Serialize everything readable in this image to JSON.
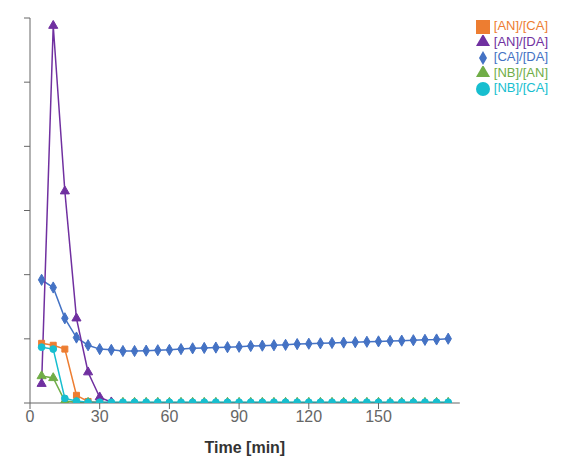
{
  "chart_data": {
    "type": "line",
    "title": "",
    "x_label": "Time [min]",
    "xlim": [
      0,
      185
    ],
    "xticks": [
      0,
      30,
      60,
      90,
      120,
      150
    ],
    "ylim": [
      0,
      10
    ],
    "yticks": [
      0,
      1.6666666666666667,
      3.3333333333333335,
      5,
      6.666666666666667,
      8.333333333333334,
      10
    ],
    "tick_labels": "x",
    "grid": false,
    "legend": "right",
    "series": [
      {
        "name": "[CA]/[DA]",
        "color": "#4472C4",
        "marker": "diamond",
        "x": [
          5,
          10,
          15,
          20,
          25,
          30,
          35,
          40,
          45,
          50,
          55,
          60,
          65,
          70,
          75,
          80,
          85,
          90,
          95,
          100,
          105,
          110,
          115,
          120,
          125,
          130,
          135,
          140,
          145,
          150,
          155,
          160,
          165,
          170,
          175,
          180
        ],
        "values": [
          3.2,
          3.0,
          2.2,
          1.7,
          1.5,
          1.4,
          1.38,
          1.35,
          1.35,
          1.36,
          1.37,
          1.38,
          1.4,
          1.42,
          1.43,
          1.44,
          1.45,
          1.46,
          1.48,
          1.49,
          1.5,
          1.51,
          1.53,
          1.54,
          1.55,
          1.56,
          1.57,
          1.58,
          1.59,
          1.6,
          1.61,
          1.62,
          1.63,
          1.64,
          1.65,
          1.67
        ]
      },
      {
        "name": "[AN]/[CA]",
        "color": "#ED7D31",
        "marker": "square",
        "x": [
          5,
          10,
          15,
          20,
          25,
          30
        ],
        "values": [
          1.55,
          1.5,
          1.4,
          0.2,
          0.04,
          0.01
        ]
      },
      {
        "name": "[NB]/[AN]",
        "color": "#70AD47",
        "marker": "triangle",
        "x": [
          5,
          10,
          15,
          20,
          25,
          30,
          35,
          40,
          45,
          50,
          55,
          60,
          65,
          70,
          75,
          80,
          85,
          90,
          95,
          100,
          105,
          110,
          115,
          120,
          125,
          130,
          135,
          140,
          145,
          150,
          155,
          160,
          165,
          170,
          175,
          180
        ],
        "values": [
          0.7,
          0.65,
          0.05,
          0.02,
          0.01,
          0.01,
          0.01,
          0.01,
          0.01,
          0.01,
          0.01,
          0.01,
          0.01,
          0.01,
          0.01,
          0.01,
          0.01,
          0.01,
          0.01,
          0.01,
          0.01,
          0.01,
          0.01,
          0.01,
          0.01,
          0.01,
          0.01,
          0.01,
          0.01,
          0.01,
          0.01,
          0.01,
          0.01,
          0.01,
          0.01,
          0.01
        ]
      },
      {
        "name": "[AN]/[DA]",
        "color": "#7030A0",
        "marker": "triangle",
        "x": [
          5,
          10,
          15,
          20,
          25,
          30,
          35
        ],
        "values": [
          0.5,
          9.8,
          5.5,
          2.2,
          0.8,
          0.15,
          0.02
        ]
      },
      {
        "name": "[NB]/[CA]",
        "color": "#17BECF",
        "marker": "circle",
        "x": [
          5,
          10,
          15,
          20,
          25,
          30,
          35,
          40,
          45,
          50,
          55,
          60,
          65,
          70,
          75,
          80,
          85,
          90,
          95,
          100,
          105,
          110,
          115,
          120,
          125,
          130,
          135,
          140,
          145,
          150,
          155,
          160,
          165,
          170,
          175,
          180
        ],
        "values": [
          1.45,
          1.4,
          0.12,
          0.05,
          0.02,
          0.02,
          0.02,
          0.02,
          0.02,
          0.02,
          0.02,
          0.02,
          0.02,
          0.02,
          0.02,
          0.02,
          0.02,
          0.02,
          0.02,
          0.02,
          0.02,
          0.02,
          0.02,
          0.02,
          0.02,
          0.02,
          0.02,
          0.02,
          0.02,
          0.02,
          0.02,
          0.02,
          0.02,
          0.02,
          0.02,
          0.02
        ]
      }
    ]
  }
}
